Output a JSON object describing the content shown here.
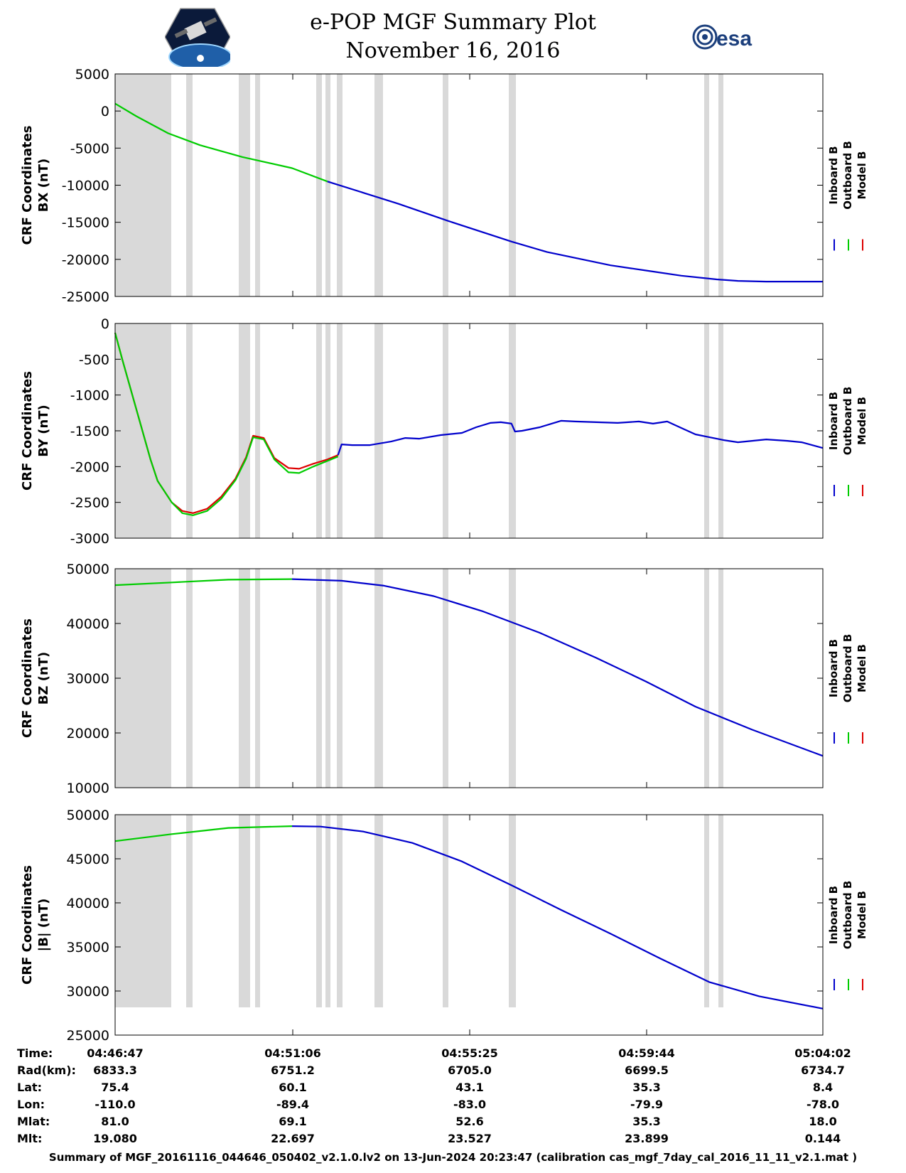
{
  "header": {
    "title": "e-POP MGF Summary Plot",
    "date": "November 16, 2016",
    "logo_left": "cassiope-satellite-logo",
    "logo_right_text": "esa"
  },
  "legend": [
    {
      "name": "Inboard B",
      "color": "#0000cc"
    },
    {
      "name": "Outboard B",
      "color": "#00cc00"
    },
    {
      "name": "Model B",
      "color": "#dd0000"
    }
  ],
  "chart_data": [
    {
      "type": "line",
      "ylabel_line1": "CRF Coordinates",
      "ylabel_line2": "BX (nT)",
      "ylim": [
        -25000,
        5000
      ],
      "yticks": [
        "5000",
        "0",
        "-5000",
        "-10000",
        "-15000",
        "-20000",
        "-25000"
      ],
      "xlim": [
        0,
        100
      ],
      "series": [
        {
          "name": "Outboard B",
          "color": "#00cc00",
          "x": [
            0,
            3,
            7.5,
            12,
            18,
            25,
            30
          ],
          "y": [
            1000,
            -700,
            -3000,
            -4600,
            -6200,
            -7700,
            -9500
          ]
        },
        {
          "name": "Inboard B",
          "color": "#0000cc",
          "x": [
            30,
            35,
            40,
            47,
            56,
            61,
            70,
            75,
            80,
            85,
            88,
            92,
            100
          ],
          "y": [
            -9500,
            -11000,
            -12500,
            -14800,
            -17600,
            -19000,
            -20800,
            -21500,
            -22200,
            -22700,
            -22900,
            -23000,
            -23000
          ]
        }
      ]
    },
    {
      "type": "line",
      "ylabel_line1": "CRF Coordinates",
      "ylabel_line2": "BY (nT)",
      "ylim": [
        -3000,
        0
      ],
      "yticks": [
        "0",
        "-500",
        "-1000",
        "-1500",
        "-2000",
        "-2500",
        "-3000"
      ],
      "xlim": [
        0,
        100
      ],
      "series": [
        {
          "name": "Model B",
          "color": "#dd0000",
          "x": [
            0,
            1,
            3,
            5,
            6,
            8,
            9.5,
            11,
            13,
            15,
            17,
            18.5,
            19.5,
            21,
            22.5,
            24.5,
            26,
            28,
            30,
            31.5
          ],
          "y": [
            -130,
            -500,
            -1200,
            -1900,
            -2200,
            -2500,
            -2620,
            -2650,
            -2590,
            -2420,
            -2170,
            -1870,
            -1570,
            -1600,
            -1880,
            -2020,
            -2030,
            -1960,
            -1900,
            -1840
          ]
        },
        {
          "name": "Outboard B",
          "color": "#00cc00",
          "x": [
            0,
            1,
            3,
            5,
            6,
            8,
            9.5,
            11,
            13,
            15,
            17,
            18.5,
            19.5,
            21,
            22.5,
            24.5,
            26,
            28,
            30,
            31.5
          ],
          "y": [
            -130,
            -500,
            -1200,
            -1900,
            -2200,
            -2500,
            -2650,
            -2680,
            -2620,
            -2450,
            -2190,
            -1890,
            -1590,
            -1620,
            -1900,
            -2080,
            -2090,
            -2000,
            -1920,
            -1860
          ]
        },
        {
          "name": "Inboard B",
          "color": "#0000cc",
          "x": [
            31.5,
            32,
            33.5,
            36,
            39,
            41,
            43,
            46,
            49,
            51,
            53,
            54.5,
            56,
            56.5,
            57.5,
            60,
            63,
            65,
            68,
            71,
            74,
            76,
            78,
            80,
            82,
            84,
            86,
            88,
            90,
            92,
            95,
            97,
            100
          ],
          "y": [
            -1840,
            -1690,
            -1700,
            -1700,
            -1650,
            -1600,
            -1610,
            -1560,
            -1530,
            -1450,
            -1390,
            -1380,
            -1400,
            -1510,
            -1500,
            -1450,
            -1360,
            -1370,
            -1380,
            -1390,
            -1370,
            -1400,
            -1370,
            -1460,
            -1550,
            -1590,
            -1630,
            -1660,
            -1640,
            -1620,
            -1640,
            -1660,
            -1740
          ]
        }
      ]
    },
    {
      "type": "line",
      "ylabel_line1": "CRF Coordinates",
      "ylabel_line2": "BZ (nT)",
      "ylim": [
        10000,
        50000
      ],
      "yticks": [
        "50000",
        "40000",
        "30000",
        "20000",
        "10000"
      ],
      "xlim": [
        0,
        100
      ],
      "series": [
        {
          "name": "Outboard B",
          "color": "#00cc00",
          "x": [
            0,
            8,
            16,
            25
          ],
          "y": [
            47000,
            47500,
            48000,
            48100
          ]
        },
        {
          "name": "Inboard B",
          "color": "#0000cc",
          "x": [
            25,
            32,
            38,
            45,
            52,
            60,
            68,
            75,
            82,
            90,
            100
          ],
          "y": [
            48100,
            47800,
            46900,
            45000,
            42200,
            38300,
            33700,
            29400,
            24800,
            20600,
            15800
          ]
        }
      ]
    },
    {
      "type": "line",
      "ylabel_line1": "CRF Coordinates",
      "ylabel_line2": "|B| (nT)",
      "ylim": [
        25000,
        50000
      ],
      "yticks": [
        "50000",
        "45000",
        "40000",
        "35000",
        "30000",
        "25000"
      ],
      "xlim": [
        0,
        100
      ],
      "series": [
        {
          "name": "Outboard B",
          "color": "#00cc00",
          "x": [
            0,
            8,
            16,
            25
          ],
          "y": [
            47000,
            47800,
            48500,
            48700
          ]
        },
        {
          "name": "Inboard B",
          "color": "#0000cc",
          "x": [
            25,
            29,
            35,
            42,
            49,
            56,
            63,
            70,
            77,
            84,
            91,
            100
          ],
          "y": [
            48700,
            48650,
            48100,
            46800,
            44700,
            42000,
            39200,
            36500,
            33700,
            31000,
            29400,
            28000
          ]
        }
      ]
    }
  ],
  "ephemeris": {
    "row_labels": [
      "Time:",
      "Rad(km):",
      "Lat:",
      "Lon:",
      "Mlat:",
      "Mlt:"
    ],
    "columns": [
      [
        "04:46:47",
        "6833.3",
        "75.4",
        "-110.0",
        "81.0",
        "19.080"
      ],
      [
        "04:51:06",
        "6751.2",
        "60.1",
        "-89.4",
        "69.1",
        "22.697"
      ],
      [
        "04:55:25",
        "6705.0",
        "43.1",
        "-83.0",
        "52.6",
        "23.527"
      ],
      [
        "04:59:44",
        "6699.5",
        "35.3",
        "-79.9",
        "35.3",
        "23.899"
      ],
      [
        "05:04:02",
        "6734.7",
        "8.4",
        "-78.0",
        "18.0",
        "0.144"
      ]
    ]
  },
  "footer": "Summary of MGF_20161116_044646_050402_v2.1.0.lv2 on 13-Jun-2024 20:23:47 (calibration cas_mgf_7day_cal_2016_11_11_v2.1.mat )"
}
